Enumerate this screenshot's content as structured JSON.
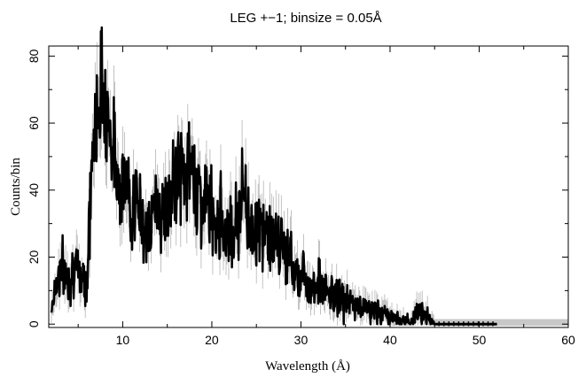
{
  "chart_data": {
    "type": "line",
    "title": "LEG +−1; binsize = 0.05Å",
    "xlabel": "Wavelength (Å)",
    "ylabel": "Counts/bin",
    "xlim": [
      1.7,
      60
    ],
    "ylim": [
      -1,
      83
    ],
    "xticks": [
      10,
      20,
      30,
      40,
      50,
      60
    ],
    "xtick_labels": [
      "10",
      "20",
      "30",
      "40",
      "50",
      "60"
    ],
    "yticks": [
      0,
      20,
      40,
      60,
      80
    ],
    "ytick_labels": [
      "0",
      "20",
      "40",
      "60",
      "80"
    ],
    "grid": false,
    "legend": "none",
    "colors": {
      "data": "#000000",
      "errorbar": "#b4b4b4",
      "background_band": "#c8c8c8"
    },
    "series": [
      {
        "x": [
          2.0,
          2.5,
          3.0,
          3.5,
          4.0,
          4.5,
          5.0,
          5.5,
          6.0,
          6.5,
          7.0,
          7.5,
          8.0,
          8.5,
          9.0,
          9.5,
          10.0,
          10.5,
          11.0,
          11.5,
          12.0,
          12.5,
          13.0,
          13.5,
          14.0,
          14.5,
          15.0,
          15.5,
          16.0,
          16.5,
          17.0,
          17.5,
          18.0,
          18.5,
          19.0,
          19.5,
          20.0,
          20.5,
          21.0,
          21.5,
          22.0,
          22.5,
          23.0,
          23.5,
          24.0,
          24.5,
          25.0,
          25.5,
          26.0,
          26.5,
          27.0,
          27.5,
          28.0,
          28.5,
          29.0,
          29.5,
          30.0,
          30.5,
          31.0,
          31.5,
          32.0,
          32.5,
          33.0,
          33.5,
          34.0,
          34.5,
          35.0,
          35.5,
          36.0,
          36.5,
          37.0,
          37.5,
          38.0,
          38.5,
          39.0,
          39.5,
          40.0,
          40.5,
          41.0,
          41.5,
          42.0,
          42.5,
          43.0,
          43.5,
          44.0,
          44.5,
          45.0,
          46.0,
          47.0,
          48.0,
          49.0,
          50.0,
          51.0,
          52.0,
          53.0,
          54.0,
          55.0,
          56.0,
          57.0,
          58.0,
          59.0,
          60.0
        ],
        "y": [
          5,
          12,
          17,
          15,
          14,
          18,
          14,
          15,
          13,
          45,
          62,
          70,
          68,
          60,
          50,
          45,
          42,
          40,
          36,
          35,
          33,
          30,
          25,
          35,
          38,
          30,
          35,
          37,
          45,
          47,
          44,
          46,
          45,
          40,
          35,
          38,
          33,
          32,
          32,
          27,
          30,
          28,
          32,
          42,
          33,
          28,
          30,
          27,
          28,
          26,
          24,
          22,
          24,
          21,
          18,
          16,
          15,
          14,
          12,
          12,
          13,
          10,
          9,
          9,
          8,
          8,
          7,
          6,
          6,
          5,
          5,
          5,
          4,
          4,
          3,
          3,
          2,
          2,
          1,
          1,
          1,
          1,
          3,
          5,
          3,
          1,
          0,
          0,
          0,
          0,
          0,
          0,
          0,
          0,
          0,
          0,
          0,
          0,
          0,
          0,
          0,
          0
        ]
      }
    ]
  }
}
